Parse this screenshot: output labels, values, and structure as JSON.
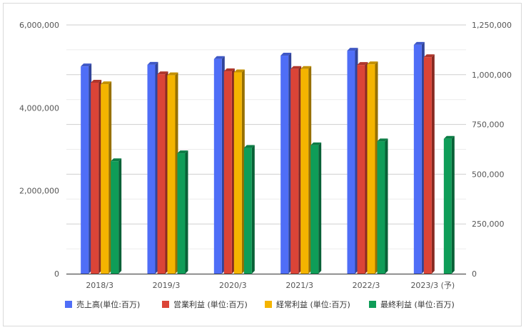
{
  "chart_data": {
    "type": "bar",
    "categories": [
      "2018/3",
      "2019/3",
      "2020/3",
      "2021/3",
      "2022/3",
      "2023/3 (予)"
    ],
    "series": [
      {
        "name": "売上高(単位:百万)",
        "axis": "left",
        "color": "#4f6ef7",
        "values": [
          5000000,
          5040000,
          5180000,
          5260000,
          5380000,
          5520000
        ]
      },
      {
        "name": "営業利益 (単位:百万)",
        "axis": "right",
        "color": "#db4437",
        "values": [
          960000,
          1002000,
          1017000,
          1029000,
          1049000,
          1088000
        ]
      },
      {
        "name": "経常利益 (単位:百万)",
        "axis": "right",
        "color": "#f4b400",
        "values": [
          952000,
          997000,
          1012000,
          1029000,
          1052000,
          null
        ]
      },
      {
        "name": "最終利益 (単位:百万)",
        "axis": "right",
        "color": "#0f9d58",
        "values": [
          565000,
          605000,
          632000,
          645000,
          665000,
          678000
        ]
      }
    ],
    "y_left": {
      "ylim": [
        0,
        6000000
      ],
      "ticks": [
        "0",
        "2,000,000",
        "4,000,000",
        "6,000,000"
      ]
    },
    "y_right": {
      "ylim": [
        0,
        1250000
      ],
      "ticks": [
        "0",
        "250,000",
        "500,000",
        "750,000",
        "1,000,000",
        "1,250,000"
      ]
    },
    "grid": true,
    "legend_position": "bottom"
  }
}
